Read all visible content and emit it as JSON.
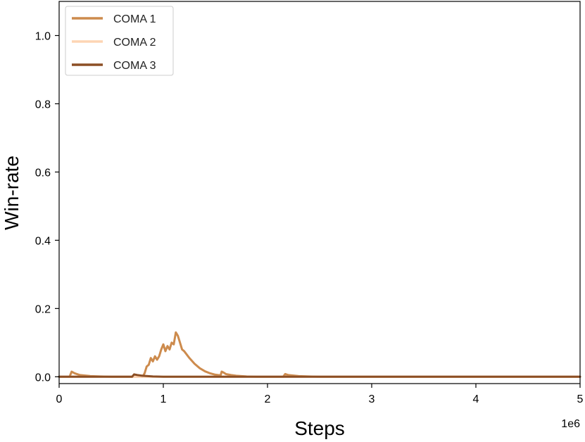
{
  "chart_data": {
    "type": "line",
    "xlabel": "Steps",
    "ylabel": "Win-rate",
    "x_offset_label": "1e6",
    "xlim": [
      0,
      5
    ],
    "ylim": [
      -0.02,
      1.1
    ],
    "x_ticks": [
      {
        "value": 0,
        "label": "0"
      },
      {
        "value": 1,
        "label": "1"
      },
      {
        "value": 2,
        "label": "2"
      },
      {
        "value": 3,
        "label": "3"
      },
      {
        "value": 4,
        "label": "4"
      },
      {
        "value": 5,
        "label": "5"
      }
    ],
    "y_ticks": [
      {
        "value": 0.0,
        "label": "0.0"
      },
      {
        "value": 0.2,
        "label": "0.2"
      },
      {
        "value": 0.4,
        "label": "0.4"
      },
      {
        "value": 0.6,
        "label": "0.6"
      },
      {
        "value": 0.8,
        "label": "0.8"
      },
      {
        "value": 1.0,
        "label": "1.0"
      }
    ],
    "grid": false,
    "legend_position": "top-left",
    "series": [
      {
        "name": "COMA 1",
        "color": "#cd8b4d",
        "x": [
          0,
          0.1,
          0.12,
          0.15,
          0.2,
          0.3,
          0.4,
          0.5,
          0.6,
          0.7,
          0.8,
          0.82,
          0.84,
          0.86,
          0.88,
          0.9,
          0.92,
          0.94,
          0.96,
          0.98,
          1.0,
          1.02,
          1.04,
          1.06,
          1.08,
          1.1,
          1.12,
          1.14,
          1.16,
          1.18,
          1.2,
          1.25,
          1.3,
          1.35,
          1.4,
          1.45,
          1.5,
          1.55,
          1.56,
          1.58,
          1.6,
          1.65,
          1.7,
          1.8,
          1.9,
          2.0,
          2.1,
          2.15,
          2.17,
          2.2,
          2.3,
          2.4,
          2.5,
          3.0,
          4.0,
          5.0
        ],
        "y": [
          0.0,
          0.0,
          0.015,
          0.01,
          0.005,
          0.002,
          0.001,
          0.0,
          0.0,
          0.0,
          0.0,
          0.01,
          0.03,
          0.035,
          0.055,
          0.045,
          0.06,
          0.05,
          0.06,
          0.08,
          0.095,
          0.075,
          0.09,
          0.08,
          0.1,
          0.095,
          0.13,
          0.12,
          0.1,
          0.08,
          0.075,
          0.055,
          0.038,
          0.025,
          0.016,
          0.01,
          0.006,
          0.004,
          0.015,
          0.012,
          0.008,
          0.005,
          0.003,
          0.001,
          0.0,
          0.0,
          0.0,
          0.0,
          0.008,
          0.005,
          0.002,
          0.001,
          0.0,
          0.0,
          0.0,
          0.0
        ]
      },
      {
        "name": "COMA 2",
        "color": "#fdd5b4",
        "x": [
          0,
          5.0
        ],
        "y": [
          0.0,
          0.0
        ]
      },
      {
        "name": "COMA 3",
        "color": "#8c4f25",
        "x": [
          0,
          0.7,
          0.72,
          0.75,
          0.8,
          0.9,
          1.0,
          1.2,
          2.0,
          5.0
        ],
        "y": [
          0.0,
          0.0,
          0.007,
          0.005,
          0.003,
          0.001,
          0.0,
          0.0,
          0.0,
          0.0
        ]
      }
    ]
  }
}
